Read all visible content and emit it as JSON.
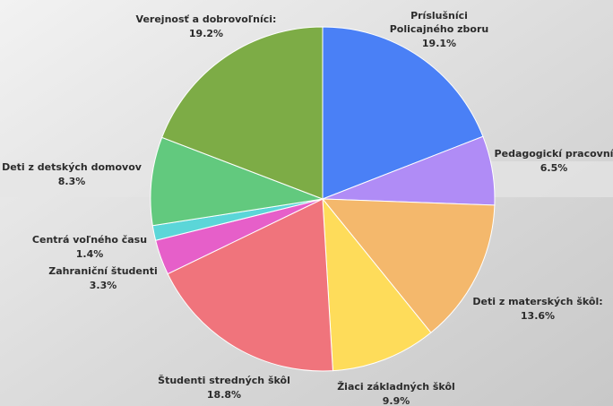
{
  "chart_data": {
    "type": "pie",
    "categories": [
      [
        "Príslušníci",
        "Policajného zboru"
      ],
      [
        "Pedagogickí pracovní"
      ],
      [
        "Deti z materských škôl:"
      ],
      [
        "Žiaci základných škôl"
      ],
      [
        "Študenti stredných škôl"
      ],
      [
        "Zahraniční študenti"
      ],
      [
        "Centrá voľného času"
      ],
      [
        "Deti z detských domovov"
      ],
      [
        "Verejnosť a dobrovoľníci:"
      ]
    ],
    "values": [
      19.1,
      6.5,
      13.6,
      9.9,
      18.8,
      3.3,
      1.4,
      8.3,
      19.2
    ],
    "value_labels": [
      "19.1%",
      "6.5%",
      "13.6%",
      "9.9%",
      "18.8%",
      "3.3%",
      "1.4%",
      "8.3%",
      "19.2%"
    ],
    "colors": [
      "#4a80f6",
      "#b08cf6",
      "#f4b86c",
      "#fedc5a",
      "#f0747c",
      "#e65fc9",
      "#5bd6d8",
      "#62c97e",
      "#7dac46"
    ]
  }
}
